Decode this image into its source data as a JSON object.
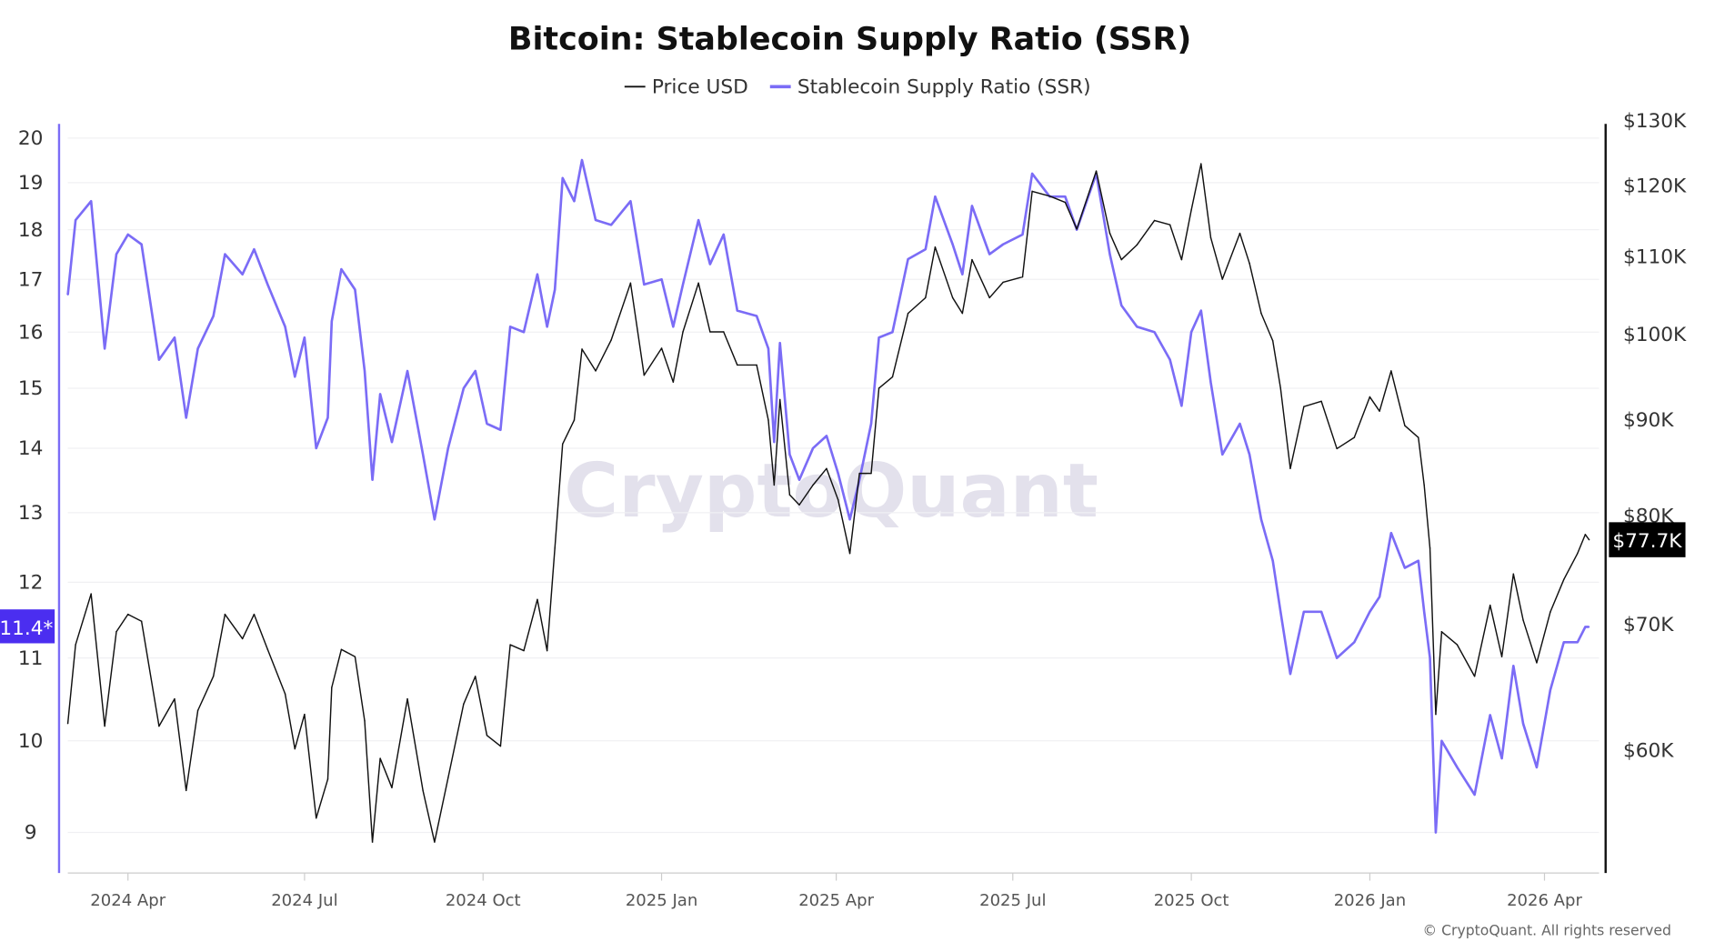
{
  "chart_data": {
    "type": "line",
    "title": "Bitcoin: Stablecoin Supply Ratio (SSR)",
    "legend_position": "top",
    "grid": true,
    "watermark": "CryptoQuant",
    "copyright": "© CryptoQuant. All rights reserved",
    "colors": {
      "price": "#111111",
      "ssr": "#7b6cf6",
      "ssr_badge": "#4b2ef0",
      "price_badge": "#000000"
    },
    "xlim": [
      "2024-03-01",
      "2026-04-28"
    ],
    "x_ticks": [
      {
        "date": "2024-04-01",
        "label": "2024 Apr"
      },
      {
        "date": "2024-07-01",
        "label": "2024 Jul"
      },
      {
        "date": "2024-10-01",
        "label": "2024 Oct"
      },
      {
        "date": "2025-01-01",
        "label": "2025 Jan"
      },
      {
        "date": "2025-04-01",
        "label": "2025 Apr"
      },
      {
        "date": "2025-07-01",
        "label": "2025 Jul"
      },
      {
        "date": "2025-10-01",
        "label": "2025 Oct"
      },
      {
        "date": "2026-01-01",
        "label": "2026 Jan"
      },
      {
        "date": "2026-04-01",
        "label": "2026 Apr"
      }
    ],
    "left_axis": {
      "scale": "log",
      "ylim": [
        8.59,
        20.33
      ],
      "ticks": [
        20,
        19,
        18,
        17,
        16,
        15,
        14,
        13,
        12,
        11,
        10,
        9
      ],
      "current_label": "11.4*",
      "current_value": 11.4
    },
    "right_axis": {
      "scale": "log",
      "unit": "USD thousands",
      "ylim": [
        51.6,
        129.5
      ],
      "ticks": [
        {
          "v": 130,
          "label": "$130K"
        },
        {
          "v": 120,
          "label": "$120K"
        },
        {
          "v": 110,
          "label": "$110K"
        },
        {
          "v": 100,
          "label": "$100K"
        },
        {
          "v": 90,
          "label": "$90K"
        },
        {
          "v": 80,
          "label": "$80K"
        },
        {
          "v": 70,
          "label": "$70K"
        },
        {
          "v": 60,
          "label": "$60K"
        }
      ],
      "current_label": "$77.7K",
      "current_value": 77.7
    },
    "x": [
      "2024-03-01",
      "2024-03-05",
      "2024-03-13",
      "2024-03-20",
      "2024-03-26",
      "2024-04-01",
      "2024-04-08",
      "2024-04-17",
      "2024-04-25",
      "2024-05-01",
      "2024-05-07",
      "2024-05-15",
      "2024-05-21",
      "2024-05-30",
      "2024-06-05",
      "2024-06-12",
      "2024-06-21",
      "2024-06-26",
      "2024-07-01",
      "2024-07-07",
      "2024-07-13",
      "2024-07-15",
      "2024-07-20",
      "2024-07-27",
      "2024-08-01",
      "2024-08-05",
      "2024-08-09",
      "2024-08-15",
      "2024-08-23",
      "2024-08-31",
      "2024-09-06",
      "2024-09-13",
      "2024-09-21",
      "2024-09-27",
      "2024-10-03",
      "2024-10-10",
      "2024-10-15",
      "2024-10-22",
      "2024-10-29",
      "2024-11-03",
      "2024-11-07",
      "2024-11-11",
      "2024-11-17",
      "2024-11-21",
      "2024-11-28",
      "2024-12-06",
      "2024-12-16",
      "2024-12-23",
      "2025-01-01",
      "2025-01-07",
      "2025-01-12",
      "2025-01-20",
      "2025-01-26",
      "2025-02-02",
      "2025-02-09",
      "2025-02-19",
      "2025-02-25",
      "2025-02-28",
      "2025-03-03",
      "2025-03-08",
      "2025-03-13",
      "2025-03-20",
      "2025-03-27",
      "2025-04-02",
      "2025-04-08",
      "2025-04-13",
      "2025-04-19",
      "2025-04-23",
      "2025-04-30",
      "2025-05-08",
      "2025-05-17",
      "2025-05-22",
      "2025-05-31",
      "2025-06-05",
      "2025-06-10",
      "2025-06-19",
      "2025-06-26",
      "2025-07-06",
      "2025-07-11",
      "2025-07-20",
      "2025-07-28",
      "2025-08-03",
      "2025-08-13",
      "2025-08-20",
      "2025-08-26",
      "2025-09-03",
      "2025-09-12",
      "2025-09-20",
      "2025-09-26",
      "2025-10-01",
      "2025-10-06",
      "2025-10-11",
      "2025-10-17",
      "2025-10-26",
      "2025-10-31",
      "2025-11-06",
      "2025-11-12",
      "2025-11-16",
      "2025-11-21",
      "2025-11-28",
      "2025-12-07",
      "2025-12-15",
      "2025-12-24",
      "2026-01-01",
      "2026-01-06",
      "2026-01-12",
      "2026-01-19",
      "2026-01-26",
      "2026-01-29",
      "2026-02-01",
      "2026-02-04",
      "2026-02-07",
      "2026-02-15",
      "2026-02-24",
      "2026-03-04",
      "2026-03-10",
      "2026-03-16",
      "2026-03-21",
      "2026-03-28",
      "2026-04-04",
      "2026-04-11",
      "2026-04-18",
      "2026-04-22",
      "2026-04-24"
    ],
    "series": [
      {
        "name": "Price USD",
        "axis": "right",
        "values": [
          62.0,
          68.3,
          72.7,
          61.8,
          69.4,
          70.9,
          70.3,
          61.8,
          63.9,
          57.1,
          63.0,
          65.7,
          70.9,
          68.8,
          70.9,
          67.9,
          64.3,
          60.1,
          62.7,
          55.2,
          57.9,
          64.8,
          67.9,
          67.3,
          62.2,
          53.6,
          59.4,
          57.3,
          63.9,
          57.1,
          53.6,
          58.0,
          63.5,
          65.7,
          61.1,
          60.3,
          68.3,
          67.8,
          72.2,
          67.8,
          76.9,
          87.4,
          90.0,
          98.2,
          95.6,
          99.3,
          106.5,
          95.1,
          98.3,
          94.3,
          100.3,
          106.5,
          100.3,
          100.3,
          96.3,
          96.3,
          90.0,
          83.1,
          92.3,
          82.1,
          81.1,
          83.1,
          84.8,
          81.6,
          76.4,
          84.3,
          84.3,
          93.6,
          94.9,
          102.6,
          104.6,
          111.3,
          104.6,
          102.6,
          109.6,
          104.6,
          106.6,
          107.3,
          119.2,
          118.5,
          117.6,
          113.8,
          122.2,
          113.2,
          109.6,
          111.6,
          115.0,
          114.4,
          109.6,
          116.5,
          123.3,
          112.6,
          107.0,
          113.2,
          109.1,
          102.6,
          99.2,
          93.6,
          84.8,
          91.5,
          92.1,
          86.9,
          88.1,
          92.6,
          91.0,
          95.6,
          89.4,
          88.1,
          83.1,
          76.9,
          62.7,
          69.4,
          68.3,
          65.7,
          71.7,
          67.3,
          74.5,
          70.4,
          66.8,
          71.1,
          74.0,
          76.4,
          78.2,
          77.7
        ]
      },
      {
        "name": "Stablecoin Supply Ratio (SSR)",
        "axis": "left",
        "values": [
          16.7,
          18.2,
          18.6,
          15.7,
          17.5,
          17.9,
          17.7,
          15.5,
          15.9,
          14.5,
          15.7,
          16.3,
          17.5,
          17.1,
          17.6,
          16.9,
          16.1,
          15.2,
          15.9,
          14.0,
          14.5,
          16.2,
          17.2,
          16.8,
          15.3,
          13.5,
          14.9,
          14.1,
          15.3,
          13.9,
          12.9,
          14.0,
          15.0,
          15.3,
          14.4,
          14.3,
          16.1,
          16.0,
          17.1,
          16.1,
          16.8,
          19.1,
          18.6,
          19.5,
          18.2,
          18.1,
          18.6,
          16.9,
          17.0,
          16.1,
          16.9,
          18.2,
          17.3,
          17.9,
          16.4,
          16.3,
          15.7,
          14.1,
          15.8,
          13.9,
          13.5,
          14.0,
          14.2,
          13.6,
          12.9,
          13.5,
          14.4,
          15.9,
          16.0,
          17.4,
          17.6,
          18.7,
          17.7,
          17.1,
          18.5,
          17.5,
          17.7,
          17.9,
          19.2,
          18.7,
          18.7,
          18.0,
          19.2,
          17.5,
          16.5,
          16.1,
          16.0,
          15.5,
          14.7,
          16.0,
          16.4,
          15.1,
          13.9,
          14.4,
          13.9,
          12.9,
          12.3,
          11.6,
          10.8,
          11.6,
          11.6,
          11.0,
          11.2,
          11.6,
          11.8,
          12.7,
          12.2,
          12.3,
          11.6,
          11.0,
          9.0,
          10.0,
          9.7,
          9.4,
          10.3,
          9.8,
          10.9,
          10.2,
          9.7,
          10.6,
          11.2,
          11.2,
          11.4,
          11.4
        ]
      }
    ]
  },
  "legend": {
    "price_label": "Price USD",
    "ssr_label": "Stablecoin Supply Ratio (SSR)"
  }
}
